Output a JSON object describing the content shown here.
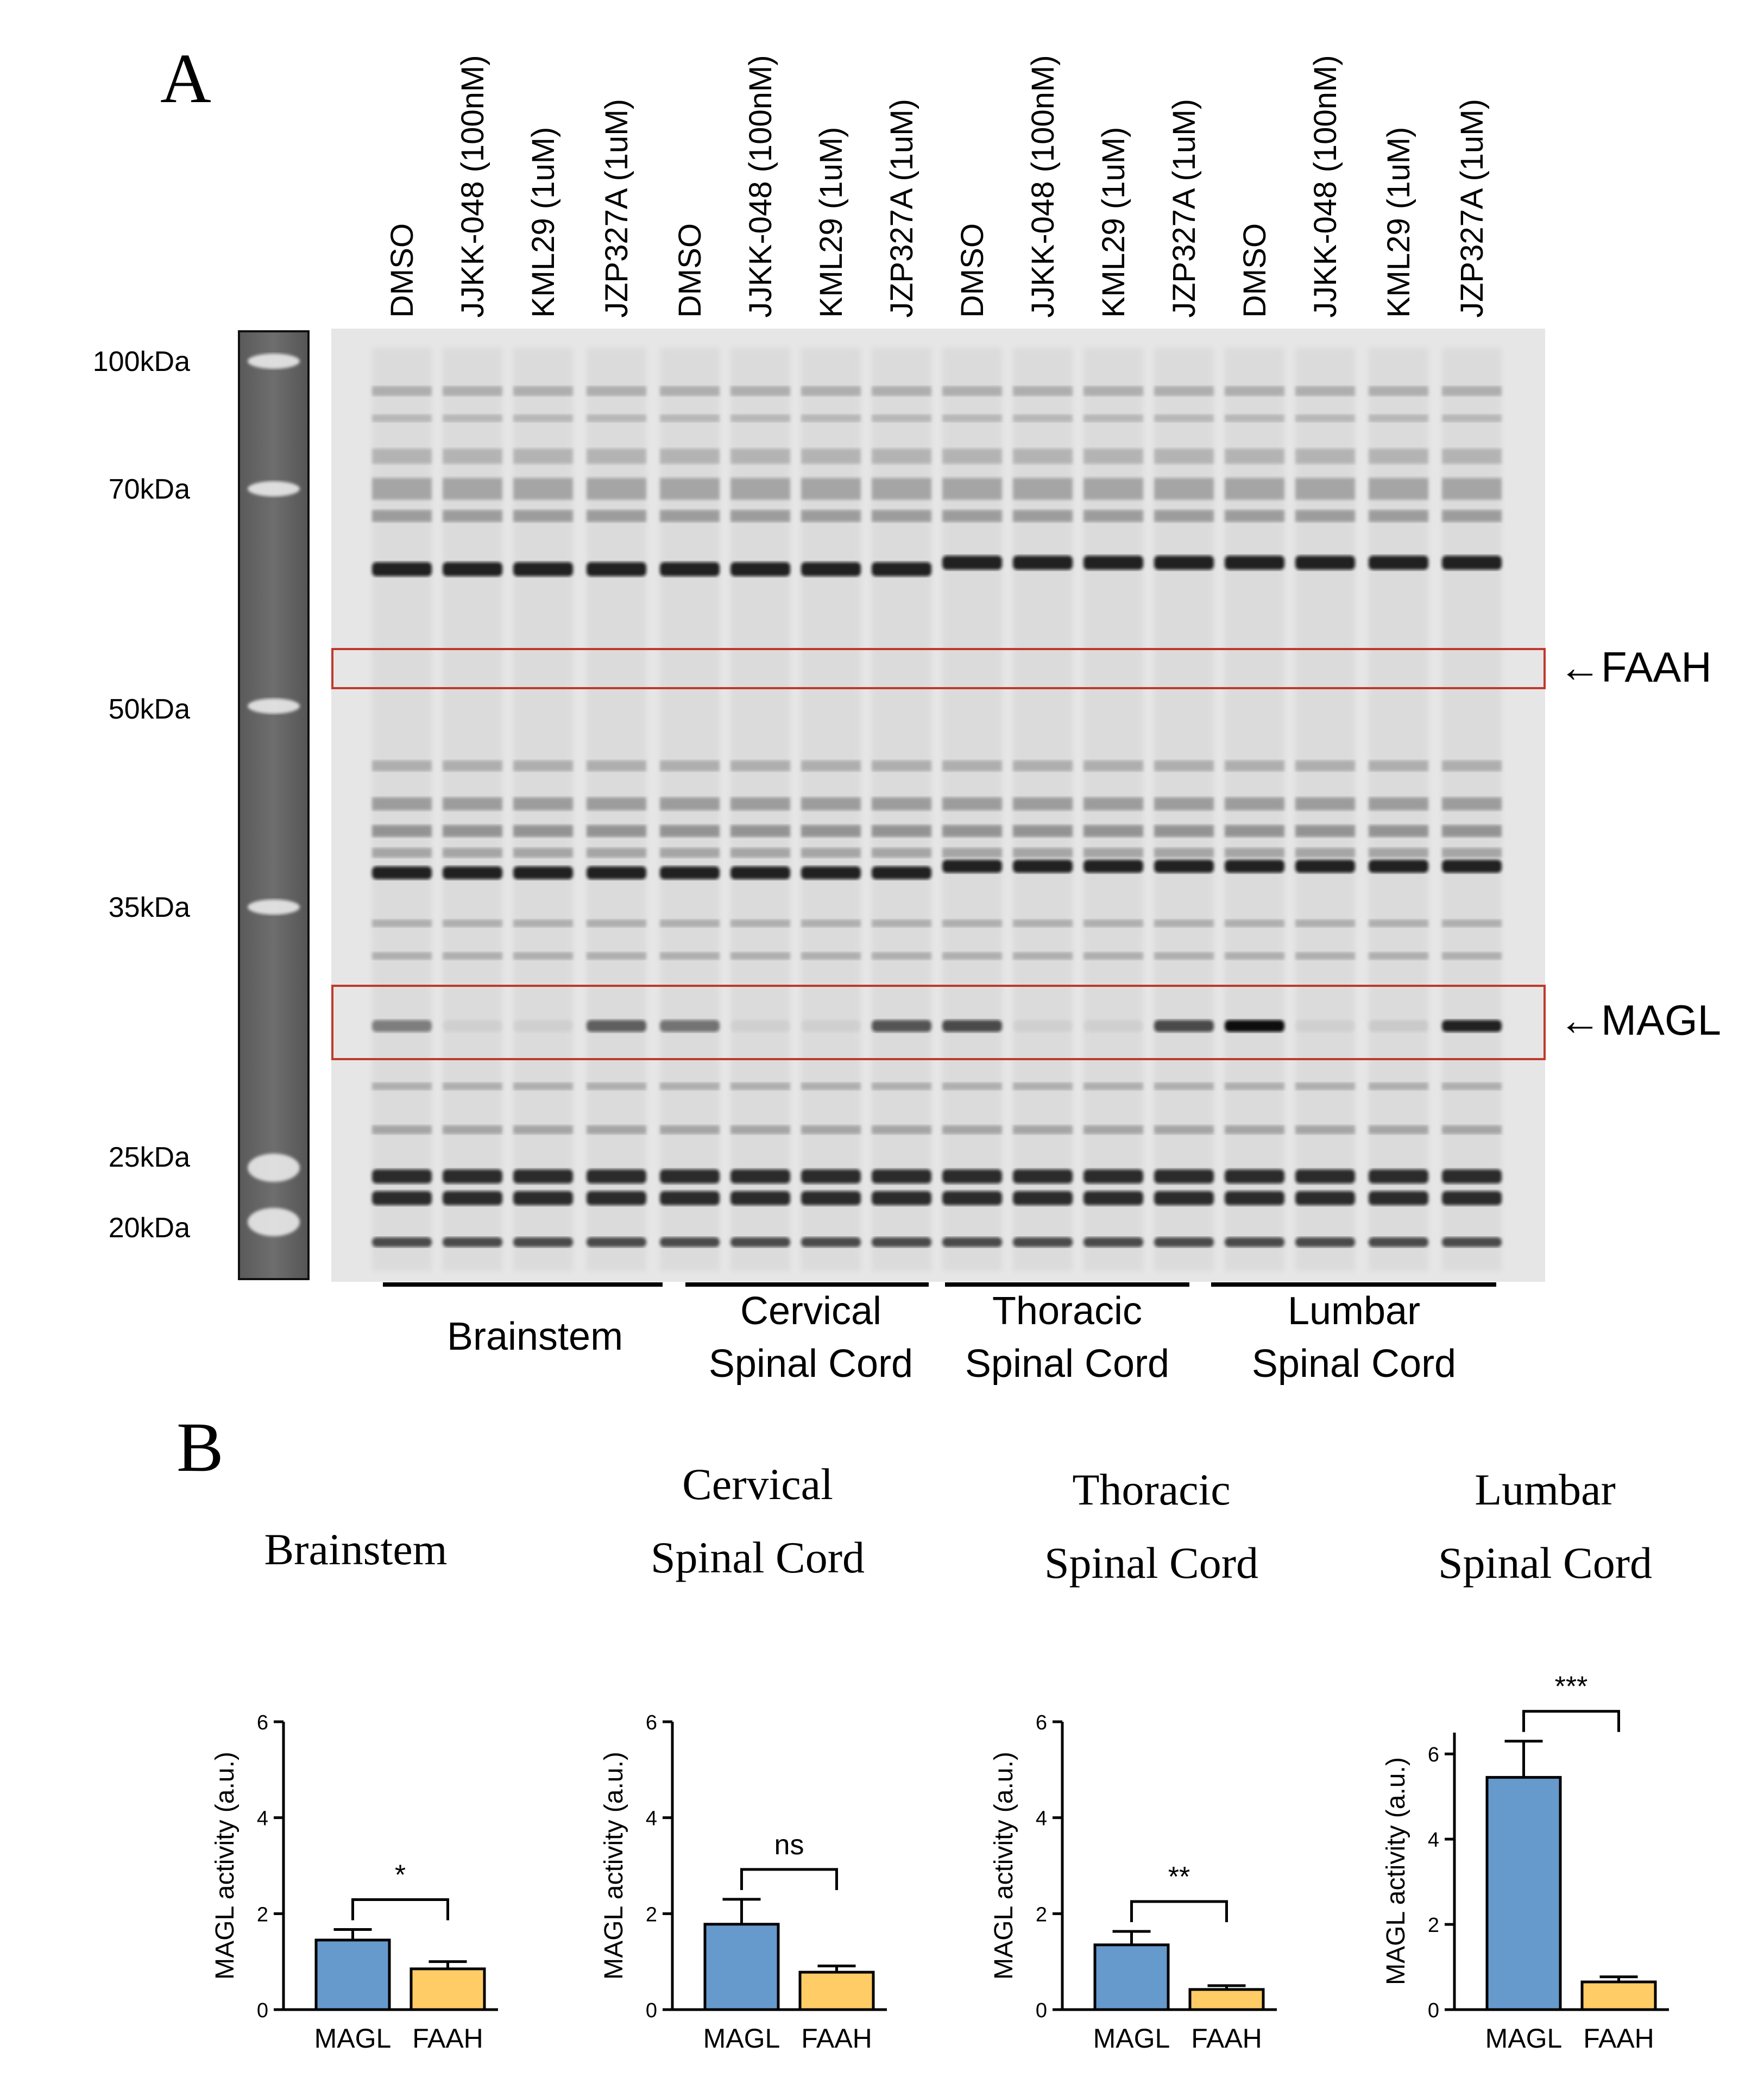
{
  "panel_a": {
    "letter": "A",
    "lane_labels": [
      "DMSO",
      "JJKK-048 (100nM)",
      "KML29 (1uM)",
      "JZP327A (1uM)",
      "DMSO",
      "JJKK-048 (100nM)",
      "KML29 (1uM)",
      "JZP327A (1uM)",
      "DMSO",
      "JJKK-048 (100nM)",
      "KML29 (1uM)",
      "JZP327A (1uM)",
      "DMSO",
      "JJKK-048 (100nM)",
      "KML29 (1uM)",
      "JZP327A (1uM)"
    ],
    "markers": [
      "100kDa",
      "70kDa",
      "50kDa",
      "35kDa",
      "25kDa",
      "20kDa"
    ],
    "annotations": {
      "faah": "←FAAH",
      "magl": "←MAGL"
    },
    "groups": [
      {
        "line1": "Brainstem",
        "line2": ""
      },
      {
        "line1": "Cervical",
        "line2": "Spinal Cord"
      },
      {
        "line1": "Thoracic",
        "line2": "Spinal Cord"
      },
      {
        "line1": "Lumbar",
        "line2": "Spinal Cord"
      }
    ],
    "magl_band_intensity": [
      0.45,
      0.05,
      0.05,
      0.6,
      0.5,
      0.05,
      0.05,
      0.65,
      0.7,
      0.05,
      0.05,
      0.7,
      1.0,
      0.05,
      0.08,
      0.9
    ],
    "colors": {
      "gel_bg": "#e8e8e8",
      "band": "#1a1a1a",
      "box": "#c0392b"
    }
  },
  "panel_b": {
    "letter": "B",
    "colors": {
      "magl": "#6699cc",
      "faah": "#ffcc66"
    },
    "chart_data": [
      {
        "type": "bar",
        "title_line1": "Brainstem",
        "title_line2": "",
        "ylabel": "MAGL activity (a.u.)",
        "categories": [
          "MAGL",
          "FAAH"
        ],
        "values": [
          1.45,
          0.85
        ],
        "errors": [
          0.22,
          0.15
        ],
        "ylim": [
          0,
          6
        ],
        "yticks": [
          "0",
          "2",
          "4",
          "6"
        ],
        "significance": "*"
      },
      {
        "type": "bar",
        "title_line1": "Cervical",
        "title_line2": "Spinal Cord",
        "ylabel": "MAGL activity (a.u.)",
        "categories": [
          "MAGL",
          "FAAH"
        ],
        "values": [
          1.78,
          0.78
        ],
        "errors": [
          0.52,
          0.13
        ],
        "ylim": [
          0,
          6
        ],
        "yticks": [
          "0",
          "2",
          "4",
          "6"
        ],
        "significance": "ns"
      },
      {
        "type": "bar",
        "title_line1": "Thoracic",
        "title_line2": "Spinal Cord",
        "ylabel": "MAGL activity (a.u.)",
        "categories": [
          "MAGL",
          "FAAH"
        ],
        "values": [
          1.35,
          0.42
        ],
        "errors": [
          0.28,
          0.08
        ],
        "ylim": [
          0,
          6
        ],
        "yticks": [
          "0",
          "2",
          "4",
          "6"
        ],
        "significance": "**"
      },
      {
        "type": "bar",
        "title_line1": "Lumbar",
        "title_line2": "Spinal Cord",
        "ylabel": "MAGL activity (a.u.)",
        "categories": [
          "MAGL",
          "FAAH"
        ],
        "values": [
          5.45,
          0.65
        ],
        "errors": [
          0.85,
          0.12
        ],
        "ylim": [
          0,
          6.5
        ],
        "yticks": [
          "0",
          "2",
          "4",
          "6"
        ],
        "significance": "***"
      }
    ]
  }
}
